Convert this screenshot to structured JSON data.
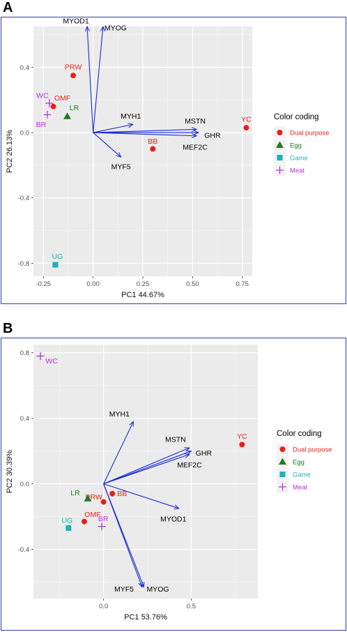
{
  "panels": [
    {
      "letter": "A",
      "chart_data": {
        "type": "scatter",
        "xlabel": "PC1 44.67%",
        "ylabel": "PC2 26.13%",
        "xlim": [
          -0.3,
          0.8
        ],
        "ylim": [
          -0.88,
          0.65
        ],
        "xticks": [
          -0.25,
          0,
          0.25,
          0.5,
          0.75
        ],
        "xtick_labels": [
          "-0.25",
          "0.00",
          "0.25",
          "0.50",
          "0.75"
        ],
        "yticks": [
          -0.8,
          -0.4,
          0,
          0.4
        ],
        "ytick_labels": [
          "-0.8",
          "-0.4",
          "0.0",
          "0.4"
        ],
        "grid": true,
        "legend_position": "right",
        "legend": {
          "title": "Color coding",
          "entries": [
            {
              "label": "Dual purpose",
              "color": "#e8201c",
              "shape": "circle"
            },
            {
              "label": "Egg",
              "color": "#1f7a1f",
              "shape": "triangle"
            },
            {
              "label": "Game",
              "color": "#17b3b8",
              "shape": "square"
            },
            {
              "label": "Meat",
              "color": "#b534d8",
              "shape": "plus"
            }
          ]
        },
        "points": [
          {
            "label": "YC",
            "group": "Dual purpose",
            "x": 0.77,
            "y": 0.03
          },
          {
            "label": "BB",
            "group": "Dual purpose",
            "x": 0.3,
            "y": -0.1
          },
          {
            "label": "PRW",
            "group": "Dual purpose",
            "x": -0.1,
            "y": 0.35
          },
          {
            "label": "OMF",
            "group": "Dual purpose",
            "x": -0.2,
            "y": 0.16
          },
          {
            "label": "LR",
            "group": "Egg",
            "x": -0.13,
            "y": 0.1
          },
          {
            "label": "UG",
            "group": "Game",
            "x": -0.19,
            "y": -0.81
          },
          {
            "label": "WC",
            "group": "Meat",
            "x": -0.22,
            "y": 0.18
          },
          {
            "label": "BR",
            "group": "Meat",
            "x": -0.23,
            "y": 0.11
          }
        ],
        "vectors": [
          {
            "label": "MYOD1",
            "x": -0.03,
            "y": 0.65
          },
          {
            "label": "MYOG",
            "x": 0.05,
            "y": 0.65
          },
          {
            "label": "MYH1",
            "x": 0.2,
            "y": 0.05
          },
          {
            "label": "MSTN",
            "x": 0.52,
            "y": 0.02
          },
          {
            "label": "GHR",
            "x": 0.53,
            "y": 0.0
          },
          {
            "label": "MEF2C",
            "x": 0.52,
            "y": -0.02
          },
          {
            "label": "MYF5",
            "x": 0.14,
            "y": -0.15
          }
        ]
      }
    },
    {
      "letter": "B",
      "chart_data": {
        "type": "scatter",
        "xlabel": "PC1 53.76%",
        "ylabel": "PC2 30.39%",
        "xlim": [
          -0.4,
          0.88
        ],
        "ylim": [
          -0.7,
          0.85
        ],
        "xticks": [
          0,
          0.5
        ],
        "xtick_labels": [
          "0.0",
          "0.5"
        ],
        "yticks": [
          -0.4,
          0,
          0.4,
          0.8
        ],
        "ytick_labels": [
          "-0.4",
          "0.0",
          "0.4",
          "0.8"
        ],
        "grid": true,
        "legend_position": "right",
        "legend": {
          "title": "Color coding",
          "entries": [
            {
              "label": "Dual purpose",
              "color": "#e8201c",
              "shape": "circle"
            },
            {
              "label": "Egg",
              "color": "#1f7a1f",
              "shape": "triangle"
            },
            {
              "label": "Game",
              "color": "#17b3b8",
              "shape": "square"
            },
            {
              "label": "Meat",
              "color": "#b534d8",
              "shape": "plus"
            }
          ]
        },
        "points": [
          {
            "label": "YC",
            "group": "Dual purpose",
            "x": 0.79,
            "y": 0.24
          },
          {
            "label": "BB",
            "group": "Dual purpose",
            "x": 0.05,
            "y": -0.06
          },
          {
            "label": "PRW",
            "group": "Dual purpose",
            "x": 0.0,
            "y": -0.11
          },
          {
            "label": "OMF",
            "group": "Dual purpose",
            "x": -0.11,
            "y": -0.23
          },
          {
            "label": "LR",
            "group": "Egg",
            "x": -0.09,
            "y": -0.09
          },
          {
            "label": "UG",
            "group": "Game",
            "x": -0.2,
            "y": -0.27
          },
          {
            "label": "WC",
            "group": "Meat",
            "x": -0.36,
            "y": 0.78
          },
          {
            "label": "BR",
            "group": "Meat",
            "x": -0.01,
            "y": -0.26
          }
        ],
        "vectors": [
          {
            "label": "MYH1",
            "x": 0.17,
            "y": 0.38
          },
          {
            "label": "MSTN",
            "x": 0.49,
            "y": 0.22
          },
          {
            "label": "GHR",
            "x": 0.5,
            "y": 0.2
          },
          {
            "label": "MEF2C",
            "x": 0.49,
            "y": 0.18
          },
          {
            "label": "MYOD1",
            "x": 0.43,
            "y": -0.15
          },
          {
            "label": "MYOG",
            "x": 0.23,
            "y": -0.63
          },
          {
            "label": "MYF5",
            "x": 0.22,
            "y": -0.63
          }
        ]
      }
    }
  ]
}
